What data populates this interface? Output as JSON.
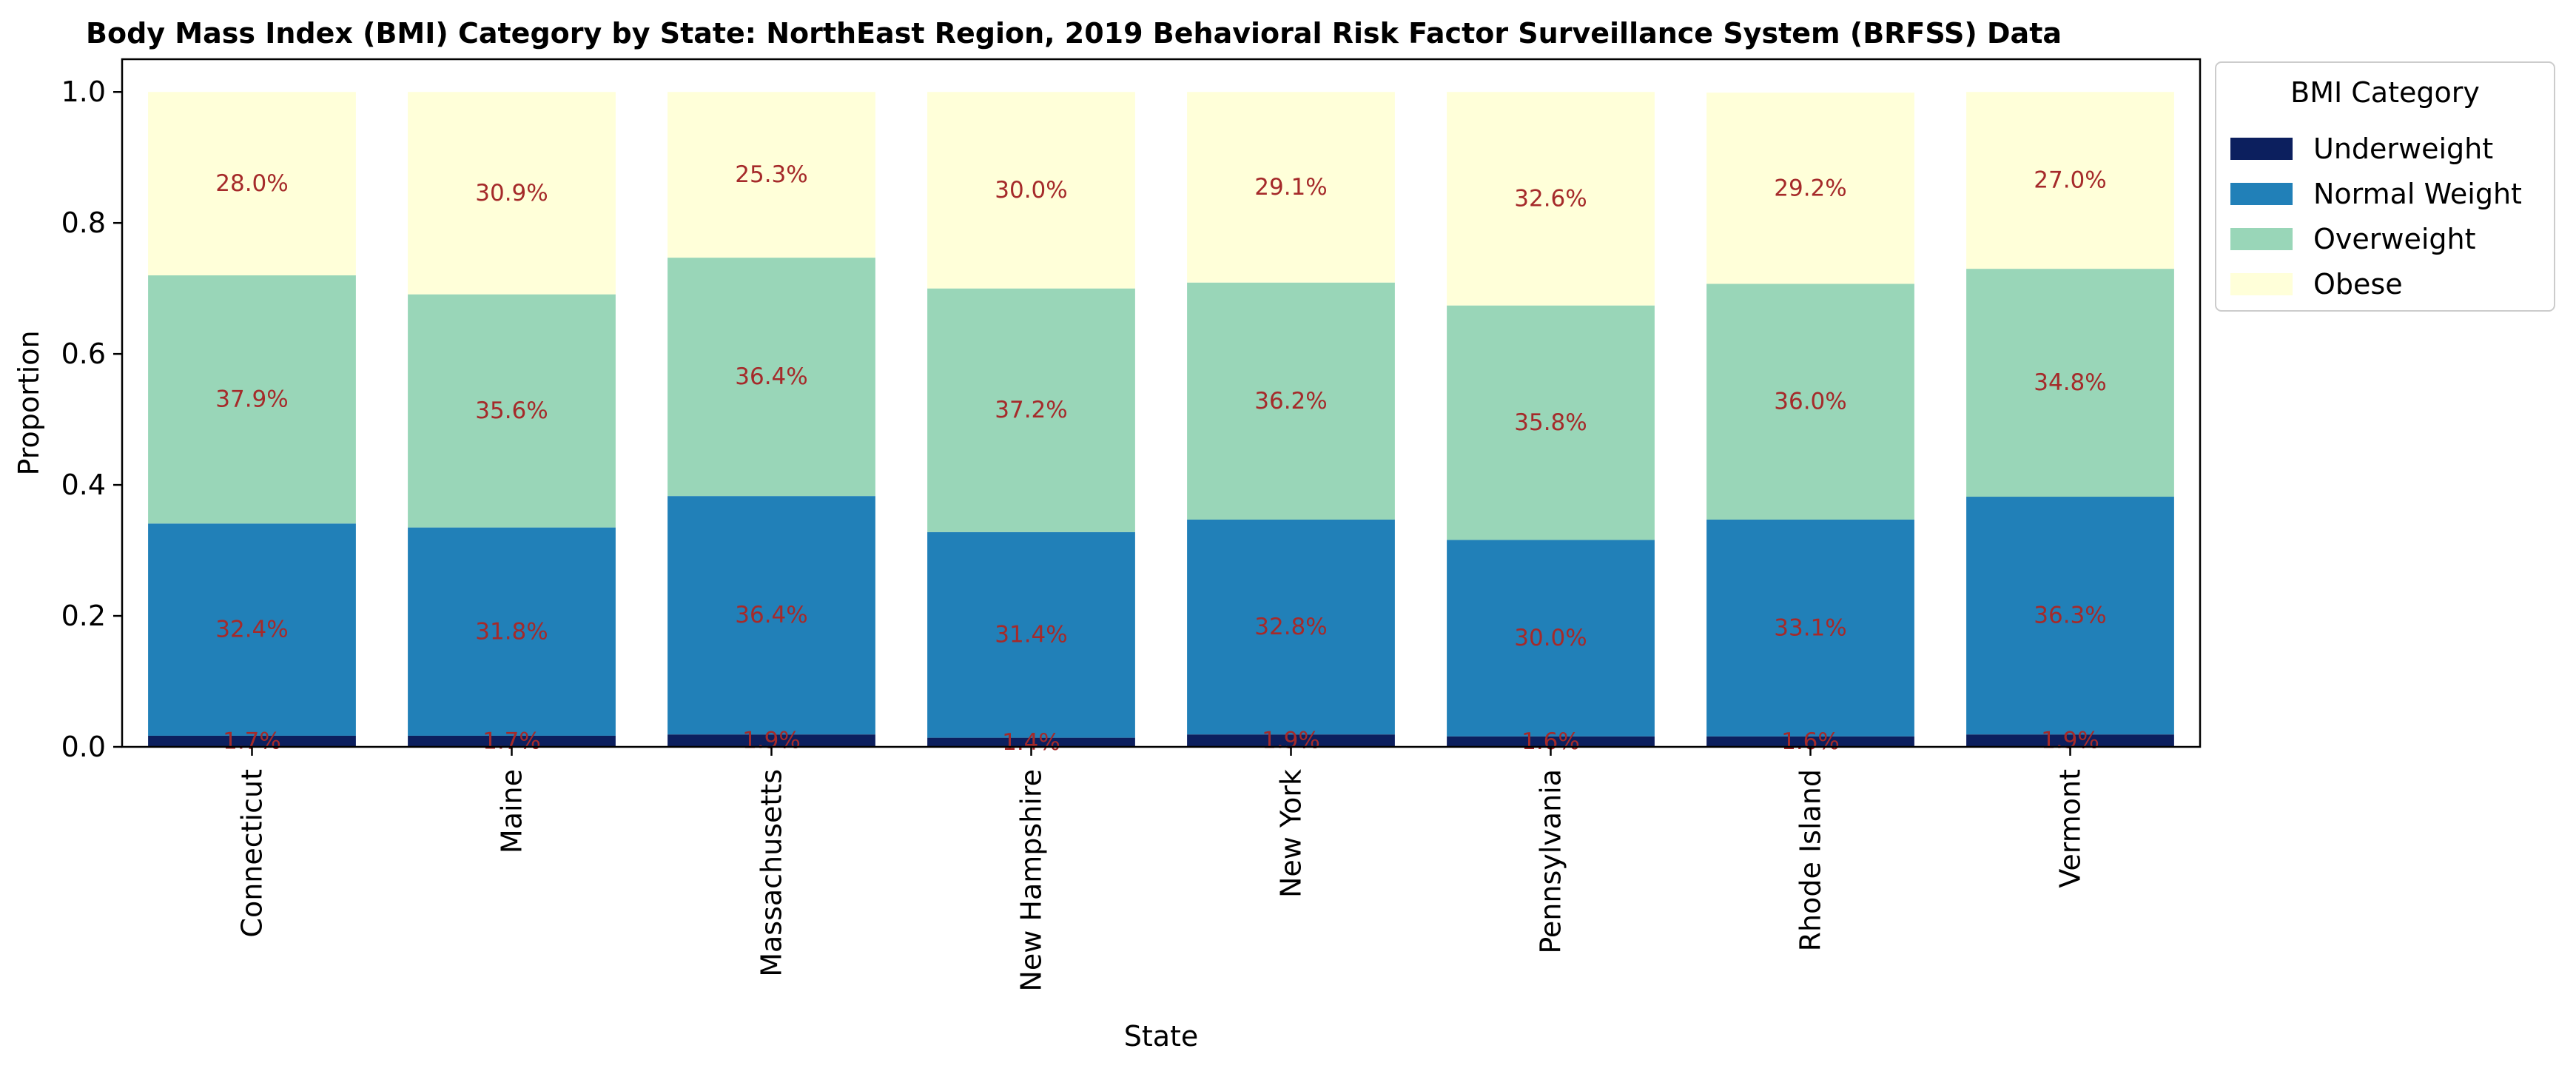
{
  "chart_data": {
    "type": "bar",
    "stacked": true,
    "title": "Body Mass Index (BMI) Category by State: NorthEast Region, 2019 Behavioral Risk Factor Surveillance System (BRFSS) Data",
    "xlabel": "State",
    "ylabel": "Proportion",
    "ylim": [
      0,
      1.05
    ],
    "yticks": [
      "0.0",
      "0.2",
      "0.4",
      "0.6",
      "0.8",
      "1.0"
    ],
    "grid": false,
    "legend_title": "BMI Category",
    "legend_position": "outside-top-right",
    "categories": [
      "Connecticut",
      "Maine",
      "Massachusetts",
      "New Hampshire",
      "New York",
      "Pennsylvania",
      "Rhode Island",
      "Vermont"
    ],
    "series": [
      {
        "name": "Underweight",
        "color": "#0c1f5e",
        "values": [
          0.017,
          0.017,
          0.019,
          0.014,
          0.019,
          0.016,
          0.016,
          0.019
        ],
        "labels": [
          "1.7%",
          "1.7%",
          "1.9%",
          "1.4%",
          "1.9%",
          "1.6%",
          "1.6%",
          "1.9%"
        ]
      },
      {
        "name": "Normal Weight",
        "color": "#2180b8",
        "values": [
          0.324,
          0.318,
          0.364,
          0.314,
          0.328,
          0.3,
          0.331,
          0.363
        ],
        "labels": [
          "32.4%",
          "31.8%",
          "36.4%",
          "31.4%",
          "32.8%",
          "30.0%",
          "33.1%",
          "36.3%"
        ]
      },
      {
        "name": "Overweight",
        "color": "#99d6b8",
        "values": [
          0.379,
          0.356,
          0.364,
          0.372,
          0.362,
          0.358,
          0.36,
          0.348
        ],
        "labels": [
          "37.9%",
          "35.6%",
          "36.4%",
          "37.2%",
          "36.2%",
          "35.8%",
          "36.0%",
          "34.8%"
        ]
      },
      {
        "name": "Obese",
        "color": "#ffffd9",
        "values": [
          0.28,
          0.309,
          0.253,
          0.3,
          0.291,
          0.326,
          0.292,
          0.27
        ],
        "labels": [
          "28.0%",
          "30.9%",
          "25.3%",
          "30.0%",
          "29.1%",
          "32.6%",
          "29.2%",
          "27.0%"
        ]
      }
    ]
  }
}
